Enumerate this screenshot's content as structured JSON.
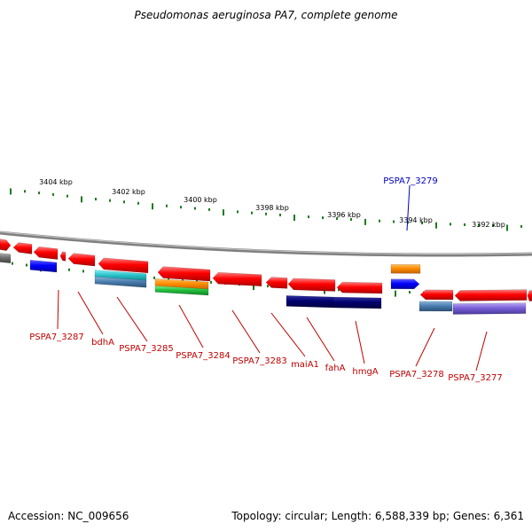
{
  "title": "Pseudomonas aeruginosa PA7, complete genome",
  "footer": {
    "accession": "Accession: NC_009656",
    "summary": "Topology: circular; Length: 6,588,339 bp; Genes: 6,361"
  },
  "colors": {
    "backbone": "#808080",
    "tick": "#1f7a1f",
    "label_red": "#c00000",
    "label_blue": "#0000c0",
    "gene_red": "#ff0000",
    "gene_blue": "#0000ff",
    "gene_orange": "#ff8c00",
    "gene_navy": "#00006e",
    "gene_cyan": "#27c0c8",
    "gene_steel": "#4a7fb0",
    "gene_green": "#22c040",
    "gene_purple": "#7a60d8",
    "gene_gray": "#707070"
  },
  "ticks": [
    {
      "label": "3404 kbp"
    },
    {
      "label": "3402 kbp"
    },
    {
      "label": "3400 kbp"
    },
    {
      "label": "3398 kbp"
    },
    {
      "label": "3396 kbp"
    },
    {
      "label": "3394 kbp"
    },
    {
      "label": "3392 kbp"
    }
  ],
  "gene_labels": [
    {
      "text": "PSPA7_3287",
      "color": "red"
    },
    {
      "text": "bdhA",
      "color": "red"
    },
    {
      "text": "PSPA7_3285",
      "color": "red"
    },
    {
      "text": "PSPA7_3284",
      "color": "red"
    },
    {
      "text": "PSPA7_3283",
      "color": "red"
    },
    {
      "text": "maiA1",
      "color": "red"
    },
    {
      "text": "fahA",
      "color": "red"
    },
    {
      "text": "hmgA",
      "color": "red"
    },
    {
      "text": "PSPA7_3278",
      "color": "red"
    },
    {
      "text": "PSPA7_3277",
      "color": "red"
    },
    {
      "text": "PSPA7_3279",
      "color": "blue"
    }
  ]
}
